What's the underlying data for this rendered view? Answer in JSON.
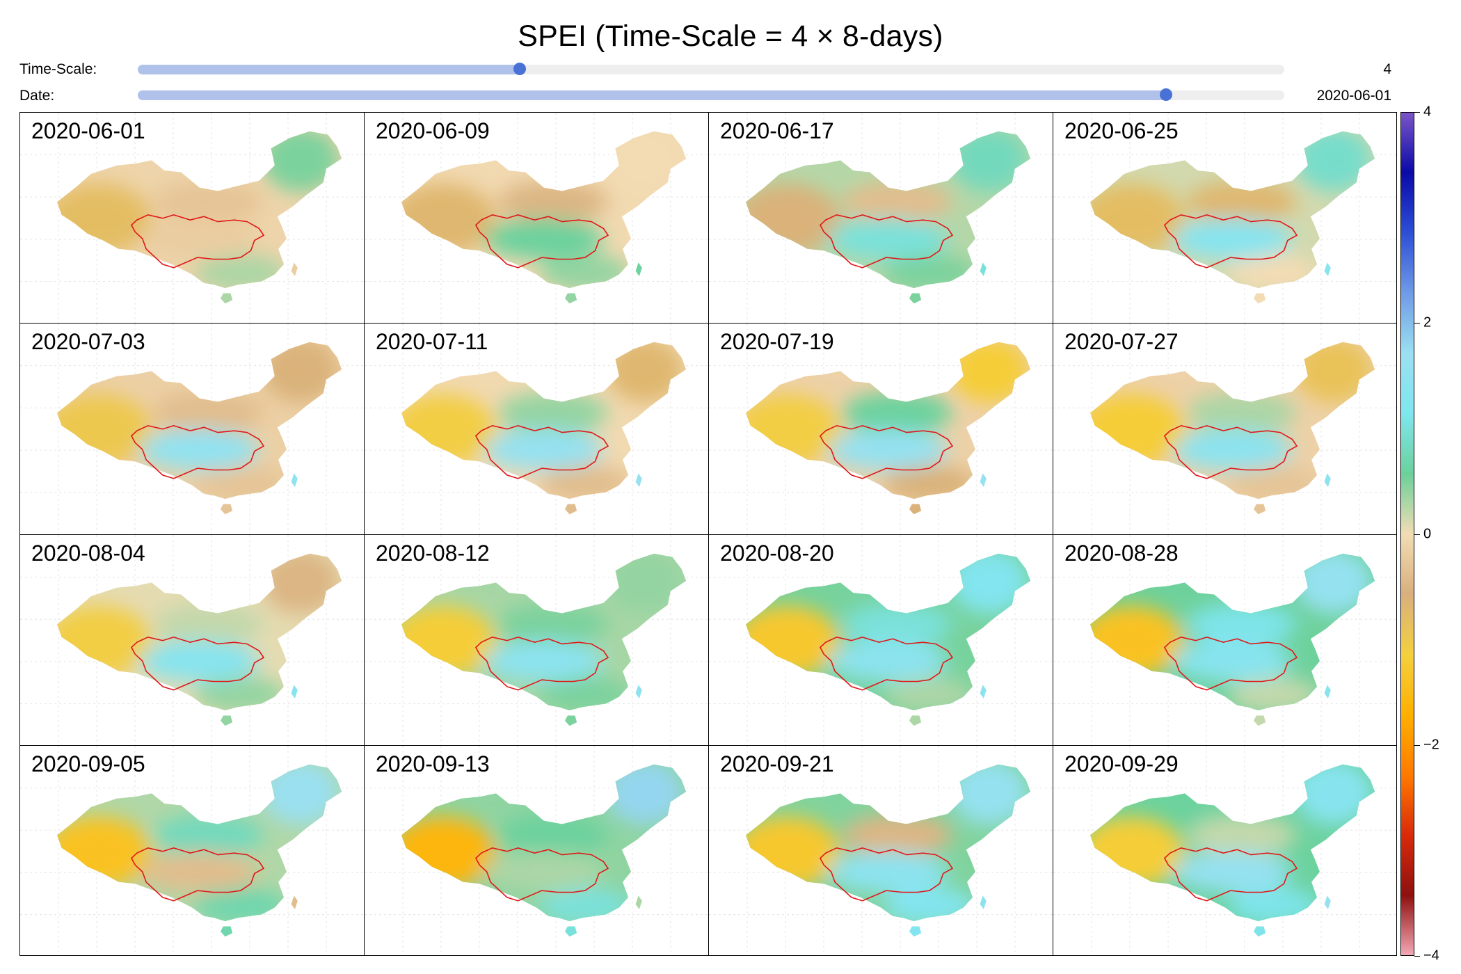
{
  "title": "SPEI (Time-Scale = 4 × 8-days)",
  "controls": {
    "timescale": {
      "label": "Time-Scale:",
      "value": "4",
      "position": 0.333
    },
    "date": {
      "label": "Date:",
      "value": "2020-06-01",
      "position": 0.897
    }
  },
  "colors": {
    "slider_fill": "#b0c2ea",
    "slider_knob": "#4a72d6",
    "slider_track": "#eeeeee",
    "boundary": "#e01818"
  },
  "colorbar": {
    "range": [
      -4,
      4
    ],
    "ticks": [
      "4",
      "2",
      "0",
      "−2",
      "−4"
    ],
    "stops": [
      "#7b55c8",
      "#0a0aa8",
      "#2e4fd6",
      "#6f9be8",
      "#9be0f0",
      "#7fe6ef",
      "#6bd19a",
      "#f3dcb4",
      "#d9b07d",
      "#f4d03f",
      "#ffb000",
      "#ff7a00",
      "#d92b0a",
      "#8e1010",
      "#f4a8b3"
    ]
  },
  "chart_data": {
    "type": "heatmap",
    "title": "SPEI (Time-Scale = 4 × 8-days)",
    "value_range": [
      -4,
      4
    ],
    "panels": [
      {
        "date": "2020-06-01",
        "north": -0.3,
        "northeast": 0.5,
        "west": -0.8,
        "south": 0.3,
        "yangtze": -0.2
      },
      {
        "date": "2020-06-09",
        "north": -0.5,
        "northeast": 0.0,
        "west": -0.7,
        "south": 0.4,
        "yangtze": 0.6
      },
      {
        "date": "2020-06-17",
        "north": -0.4,
        "northeast": 0.8,
        "west": -0.6,
        "south": 0.5,
        "yangtze": 1.0
      },
      {
        "date": "2020-06-25",
        "north": -0.7,
        "northeast": 0.9,
        "west": -0.8,
        "south": 0.0,
        "yangtze": 1.3
      },
      {
        "date": "2020-07-03",
        "north": -0.4,
        "northeast": -0.6,
        "west": -1.0,
        "south": -0.3,
        "yangtze": 1.5
      },
      {
        "date": "2020-07-11",
        "north": 0.4,
        "northeast": -0.7,
        "west": -1.1,
        "south": -0.4,
        "yangtze": 1.6
      },
      {
        "date": "2020-07-19",
        "north": 0.6,
        "northeast": -1.2,
        "west": -1.1,
        "south": -0.6,
        "yangtze": 1.6
      },
      {
        "date": "2020-07-27",
        "north": 0.3,
        "northeast": -0.9,
        "west": -1.2,
        "south": -0.3,
        "yangtze": 1.4
      },
      {
        "date": "2020-08-04",
        "north": 0.2,
        "northeast": -0.5,
        "west": -1.1,
        "south": 0.4,
        "yangtze": 1.3
      },
      {
        "date": "2020-08-12",
        "north": 0.5,
        "northeast": 0.4,
        "west": -1.2,
        "south": 0.5,
        "yangtze": 1.4
      },
      {
        "date": "2020-08-20",
        "north": 1.0,
        "northeast": 1.2,
        "west": -1.3,
        "south": 0.3,
        "yangtze": 1.4
      },
      {
        "date": "2020-08-28",
        "north": 1.1,
        "northeast": 1.6,
        "west": -1.4,
        "south": 0.2,
        "yangtze": 1.3
      },
      {
        "date": "2020-09-05",
        "north": 0.8,
        "northeast": 1.7,
        "west": -1.4,
        "south": 0.7,
        "yangtze": -0.4
      },
      {
        "date": "2020-09-13",
        "north": 0.6,
        "northeast": 1.8,
        "west": -1.6,
        "south": 1.0,
        "yangtze": 0.3
      },
      {
        "date": "2020-09-21",
        "north": -0.5,
        "northeast": 1.6,
        "west": -1.3,
        "south": 1.2,
        "yangtze": 1.4
      },
      {
        "date": "2020-09-29",
        "north": 0.2,
        "northeast": 1.3,
        "west": -1.2,
        "south": 1.1,
        "yangtze": 1.6
      }
    ]
  }
}
